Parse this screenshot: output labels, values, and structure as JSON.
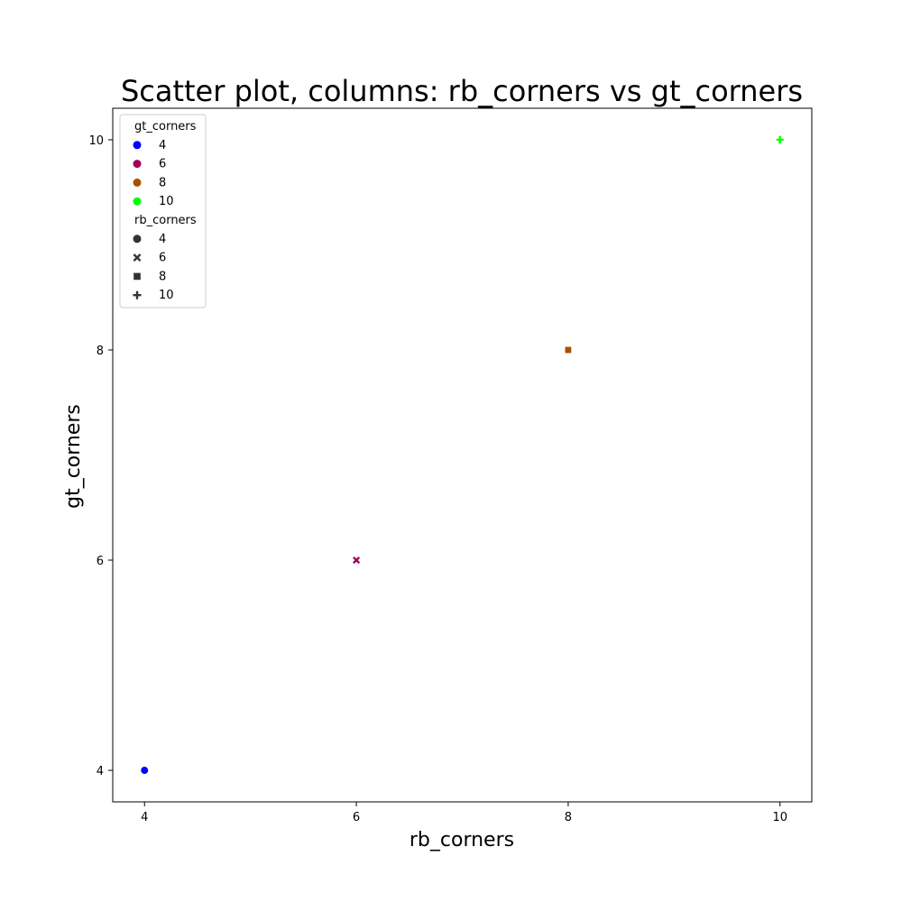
{
  "chart_data": {
    "type": "scatter",
    "title": "Scatter plot, columns: rb_corners vs gt_corners",
    "xlabel": "rb_corners",
    "ylabel": "gt_corners",
    "xlim": [
      3.7,
      10.3
    ],
    "ylim": [
      3.7,
      10.3
    ],
    "xticks": [
      "4",
      "6",
      "8",
      "10"
    ],
    "yticks": [
      "4",
      "6",
      "8",
      "10"
    ],
    "grid": false,
    "legend_position": "top-left",
    "points": [
      {
        "x": 4,
        "y": 4,
        "gt_corners": "4",
        "rb_corners": "4"
      },
      {
        "x": 6,
        "y": 6,
        "gt_corners": "6",
        "rb_corners": "6"
      },
      {
        "x": 8,
        "y": 8,
        "gt_corners": "8",
        "rb_corners": "8"
      },
      {
        "x": 10,
        "y": 10,
        "gt_corners": "10",
        "rb_corners": "10"
      }
    ],
    "legend": {
      "hue_title": "gt_corners",
      "hue_entries": [
        {
          "label": "4",
          "color": "#0000ff"
        },
        {
          "label": "6",
          "color": "#a3005c"
        },
        {
          "label": "8",
          "color": "#a85200"
        },
        {
          "label": "10",
          "color": "#00ff00"
        }
      ],
      "style_title": "rb_corners",
      "style_entries": [
        {
          "label": "4",
          "marker": "circle"
        },
        {
          "label": "6",
          "marker": "x"
        },
        {
          "label": "8",
          "marker": "square"
        },
        {
          "label": "10",
          "marker": "plus"
        }
      ]
    }
  }
}
